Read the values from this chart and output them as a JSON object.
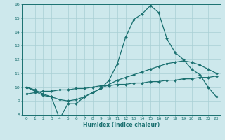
{
  "xlabel": "Humidex (Indice chaleur)",
  "xlim": [
    -0.5,
    23.5
  ],
  "ylim": [
    8,
    16
  ],
  "xticks": [
    0,
    1,
    2,
    3,
    4,
    5,
    6,
    7,
    8,
    9,
    10,
    11,
    12,
    13,
    14,
    15,
    16,
    17,
    18,
    19,
    20,
    21,
    22,
    23
  ],
  "yticks": [
    8,
    9,
    10,
    11,
    12,
    13,
    14,
    15,
    16
  ],
  "background_color": "#cde8ec",
  "grid_color": "#a8cfd4",
  "line_color": "#1a7070",
  "series1": [
    10.0,
    9.7,
    9.4,
    9.3,
    7.7,
    8.8,
    8.8,
    9.3,
    9.6,
    9.9,
    10.5,
    11.7,
    13.6,
    14.9,
    15.3,
    15.9,
    15.4,
    13.5,
    12.5,
    12.0,
    11.3,
    10.9,
    10.0,
    9.3
  ],
  "series2": [
    10.0,
    9.8,
    9.5,
    9.3,
    9.1,
    9.0,
    9.1,
    9.3,
    9.6,
    9.9,
    10.2,
    10.5,
    10.7,
    10.9,
    11.1,
    11.3,
    11.5,
    11.7,
    11.8,
    11.9,
    11.8,
    11.6,
    11.3,
    11.0
  ],
  "series3": [
    9.5,
    9.6,
    9.7,
    9.7,
    9.8,
    9.8,
    9.9,
    9.9,
    10.0,
    10.1,
    10.1,
    10.2,
    10.2,
    10.3,
    10.3,
    10.4,
    10.4,
    10.5,
    10.5,
    10.6,
    10.6,
    10.7,
    10.7,
    10.8
  ]
}
